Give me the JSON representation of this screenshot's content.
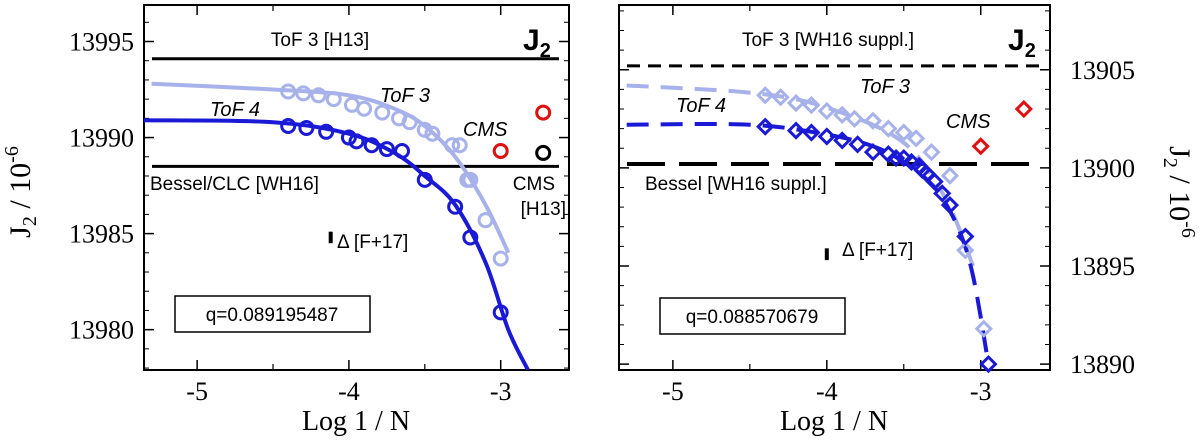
{
  "colors": {
    "dark_blue": "#1a1ad6",
    "light_blue": "#a8b2ea",
    "red": "#e01010",
    "black": "#000000"
  },
  "chart_data": [
    {
      "type": "scatter",
      "panel": "left",
      "title": "J₂",
      "xlabel": "Log 1 / N",
      "ylabel": "J₂ / 10⁻⁶",
      "xlim": [
        -5.35,
        -2.55
      ],
      "ylim": [
        13977.9,
        13996.9
      ],
      "x_ticks": [
        -5,
        -4,
        -3
      ],
      "x_tick_labels": [
        "-5",
        "-4",
        "-3"
      ],
      "y_ticks": [
        13980,
        13985,
        13990,
        13995
      ],
      "y_tick_labels": [
        "13980",
        "13985",
        "13990",
        "13995"
      ],
      "hlines": [
        {
          "name": "ToF 3 [H13]",
          "y": 13994.1,
          "style": "solid"
        },
        {
          "name": "Bessel/CLC [WH16]",
          "y": 13988.5,
          "style": "solid"
        }
      ],
      "series": [
        {
          "name": "ToF 3",
          "color": "light_blue",
          "marker": "circle",
          "x": [
            -4.4,
            -4.3,
            -4.2,
            -4.1,
            -3.98,
            -3.9,
            -3.78,
            -3.67,
            -3.6,
            -3.5,
            -3.45,
            -3.32,
            -3.27,
            -3.22,
            -3.2,
            -3.1,
            -3.0
          ],
          "y": [
            13992.4,
            13992.3,
            13992.2,
            13992.0,
            13991.7,
            13991.5,
            13991.3,
            13991.0,
            13990.8,
            13990.4,
            13990.2,
            13989.6,
            13989.6,
            13987.8,
            13987.8,
            13985.7,
            13983.7
          ],
          "fit_x": [
            -5.3,
            -4.5,
            -4.0,
            -3.7,
            -3.5,
            -3.3,
            -3.1,
            -2.95
          ],
          "fit_y": [
            13992.8,
            13992.5,
            13992.2,
            13991.5,
            13990.6,
            13989.0,
            13986.5,
            13984.0
          ]
        },
        {
          "name": "ToF 4",
          "color": "dark_blue",
          "marker": "circle",
          "x": [
            -4.4,
            -4.28,
            -4.15,
            -4.0,
            -3.95,
            -3.85,
            -3.75,
            -3.65,
            -3.5,
            -3.3,
            -3.2,
            -3.0
          ],
          "y": [
            13990.6,
            13990.5,
            13990.3,
            13990.0,
            13989.8,
            13989.6,
            13989.4,
            13989.3,
            13987.8,
            13986.4,
            13984.8,
            13980.9
          ],
          "fit_x": [
            -5.35,
            -4.5,
            -4.0,
            -3.7,
            -3.5,
            -3.3,
            -3.1,
            -2.95,
            -2.82
          ],
          "fit_y": [
            13990.9,
            13990.8,
            13990.2,
            13989.2,
            13988.0,
            13986.5,
            13983.5,
            13980.0,
            13977.9
          ]
        },
        {
          "name": "CMS",
          "color": "red",
          "marker": "circle",
          "x": [
            -3.0,
            -2.72
          ],
          "y": [
            13989.3,
            13991.3
          ]
        },
        {
          "name": "CMS [H13]",
          "color": "black",
          "marker": "circle",
          "x": [
            -2.72
          ],
          "y": [
            13989.2
          ]
        }
      ],
      "annotations": {
        "tof3_label": "ToF 3",
        "tof4_label": "ToF 4",
        "cms_label": "CMS",
        "cms_h13_line1": "CMS",
        "cms_h13_line2": "[H13]",
        "delta_label": "Δ [F+17]",
        "delta_bar": {
          "x": -4.12,
          "y1": 13984.5,
          "y2": 13985.1
        },
        "q_label": "q=0.089195487",
        "panel_label": "J",
        "panel_label_sub": "2"
      }
    },
    {
      "type": "scatter",
      "panel": "right",
      "title": "J₂",
      "xlabel": "Log 1 / N",
      "ylabel": "J₂ / 10⁻⁶",
      "xlim": [
        -5.35,
        -2.55
      ],
      "ylim": [
        13889.7,
        13908.3
      ],
      "x_ticks": [
        -5,
        -4,
        -3
      ],
      "x_tick_labels": [
        "-5",
        "-4",
        "-3"
      ],
      "y_ticks": [
        13890,
        13895,
        13900,
        13905
      ],
      "y_tick_labels": [
        "13890",
        "13895",
        "13900",
        "13905"
      ],
      "hlines": [
        {
          "name": "ToF 3 [WH16 suppl.]",
          "y": 13905.2,
          "style": "dashed"
        },
        {
          "name": "Bessel [WH16 suppl.]",
          "y": 13900.2,
          "style": "longdash"
        }
      ],
      "series": [
        {
          "name": "ToF 3",
          "color": "light_blue",
          "marker": "diamond",
          "x": [
            -4.4,
            -4.3,
            -4.2,
            -4.1,
            -4.0,
            -3.9,
            -3.82,
            -3.7,
            -3.6,
            -3.5,
            -3.42,
            -3.32,
            -3.2,
            -3.1,
            -2.98
          ],
          "y": [
            13903.7,
            13903.6,
            13903.3,
            13903.2,
            13902.9,
            13902.7,
            13902.5,
            13902.4,
            13902.0,
            13901.8,
            13901.5,
            13900.8,
            13899.6,
            13895.8,
            13891.8
          ],
          "fit_x": [
            -5.3,
            -4.6,
            -4.2,
            -3.9,
            -3.6,
            -3.4,
            -3.2,
            -3.05
          ],
          "fit_y": [
            13904.2,
            13903.9,
            13903.5,
            13902.8,
            13901.8,
            13900.5,
            13898.0,
            13895.0
          ]
        },
        {
          "name": "ToF 4",
          "color": "dark_blue",
          "marker": "diamond",
          "x": [
            -4.4,
            -4.2,
            -4.1,
            -4.0,
            -3.9,
            -3.8,
            -3.7,
            -3.6,
            -3.55,
            -3.5,
            -3.45,
            -3.4,
            -3.38,
            -3.35,
            -3.3,
            -3.25,
            -3.2,
            -3.1,
            -2.95
          ],
          "y": [
            13902.1,
            13901.9,
            13901.8,
            13901.6,
            13901.4,
            13901.2,
            13900.8,
            13900.7,
            13900.5,
            13900.5,
            13900.3,
            13900.1,
            13899.9,
            13899.7,
            13899.3,
            13898.7,
            13898.1,
            13896.5,
            13890.0
          ],
          "fit_x": [
            -5.3,
            -4.5,
            -4.0,
            -3.7,
            -3.5,
            -3.3,
            -3.15,
            -3.05,
            -2.95
          ],
          "fit_y": [
            13902.2,
            13902.2,
            13901.7,
            13901.1,
            13900.3,
            13899.0,
            13897.0,
            13894.5,
            13890.0
          ]
        },
        {
          "name": "CMS",
          "color": "red",
          "marker": "diamond",
          "x": [
            -3.0,
            -2.72
          ],
          "y": [
            13901.1,
            13903.0
          ]
        }
      ],
      "annotations": {
        "tof3_label": "ToF 3",
        "tof4_label": "ToF 4",
        "cms_label": "CMS",
        "delta_label": "Δ [F+17]",
        "delta_bar": {
          "x": -4.0,
          "y1": 13895.3,
          "y2": 13895.9
        },
        "q_label": "q=0.088570679",
        "panel_label": "J",
        "panel_label_sub": "2"
      }
    }
  ]
}
